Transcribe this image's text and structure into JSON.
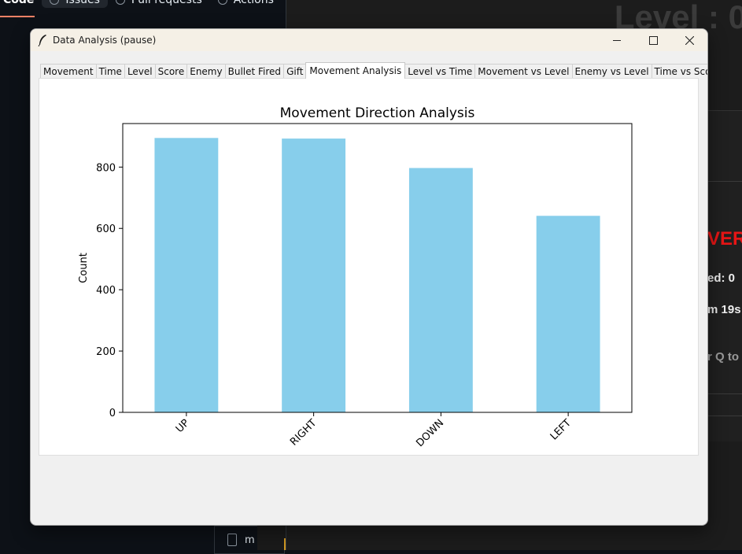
{
  "github": {
    "tabs": [
      {
        "label": "Code"
      },
      {
        "label": "Issues"
      },
      {
        "label": "Pull requests"
      },
      {
        "label": "Actions"
      }
    ],
    "file_name": "m"
  },
  "game": {
    "level_text": "Level : 0",
    "over_text": "VER",
    "stat1": "ed: 0",
    "stat2": "m 19s",
    "hint": "r Q to"
  },
  "window": {
    "title": "Data Analysis (pause)",
    "tabs": [
      {
        "label": "Movement"
      },
      {
        "label": "Time"
      },
      {
        "label": "Level"
      },
      {
        "label": "Score"
      },
      {
        "label": "Enemy"
      },
      {
        "label": "Bullet Fired"
      },
      {
        "label": "Gift"
      },
      {
        "label": "Movement Analysis",
        "selected": true
      },
      {
        "label": "Level vs Time"
      },
      {
        "label": "Movement vs Level"
      },
      {
        "label": "Enemy vs Level"
      },
      {
        "label": "Time vs Score"
      }
    ]
  },
  "chart_data": {
    "type": "bar",
    "title": "Movement Direction Analysis",
    "xlabel": "",
    "ylabel": "Count",
    "categories": [
      "UP",
      "RIGHT",
      "DOWN",
      "LEFT"
    ],
    "values": [
      895,
      893,
      797,
      641
    ],
    "ylim": [
      0,
      942
    ],
    "yticks": [
      0,
      200,
      400,
      600,
      800
    ],
    "bar_color": "#87ceeb",
    "grid": false
  }
}
